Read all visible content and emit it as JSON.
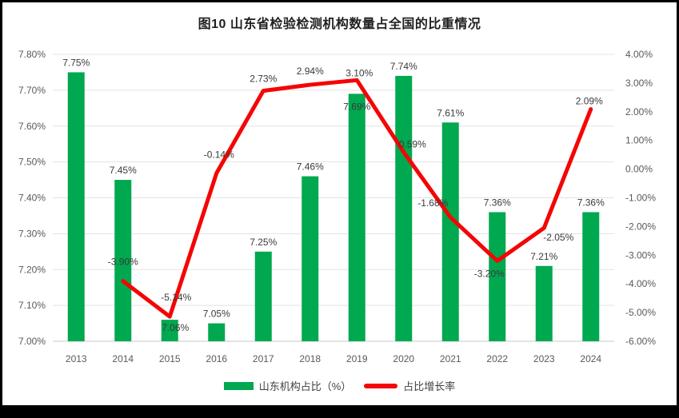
{
  "title": "图10  山东省检验检测机构数量占全国的比重情况",
  "legend": {
    "bar_label": "山东机构占比（%）",
    "line_label": "占比增长率"
  },
  "colors": {
    "bar_green": "#00a84f",
    "line_red": "#f50505",
    "grid_gray": "#e3e3e3",
    "tick_gray": "#595959",
    "frame_black": "#000000"
  },
  "chart_data": {
    "type": "bar+line combo",
    "title": "图10  山东省检验检测机构数量占全国的比重情况",
    "categories": [
      "2013",
      "2014",
      "2015",
      "2016",
      "2017",
      "2018",
      "2019",
      "2020",
      "2021",
      "2022",
      "2023",
      "2024"
    ],
    "series": [
      {
        "name": "山东机构占比（%）",
        "type": "bar",
        "axis": "left",
        "color": "#00a84f",
        "values": [
          7.75,
          7.45,
          7.06,
          7.05,
          7.25,
          7.46,
          7.69,
          7.74,
          7.61,
          7.36,
          7.21,
          7.36
        ],
        "labels": [
          "7.75%",
          "7.45%",
          "7.06%",
          "7.05%",
          "7.25%",
          "7.46%",
          "7.69%",
          "7.74%",
          "7.61%",
          "7.36%",
          "7.21%",
          "7.36%"
        ],
        "label_dx": [
          0,
          0,
          7,
          0,
          0,
          0,
          0,
          0,
          0,
          0,
          0,
          0
        ],
        "label_dy": [
          -8,
          -8,
          14,
          -8,
          -8,
          -8,
          20,
          -8,
          -8,
          -8,
          -8,
          -8
        ]
      },
      {
        "name": "占比增长率",
        "type": "line",
        "axis": "right",
        "color": "#f50505",
        "values": [
          null,
          -3.9,
          -5.14,
          -0.14,
          2.73,
          2.94,
          3.1,
          0.59,
          -1.68,
          -3.2,
          -2.05,
          2.09
        ],
        "labels": [
          null,
          "-3.90%",
          "-5.14%",
          "-0.14%",
          "2.73%",
          "2.94%",
          "3.10%",
          "0.59%",
          "-1.68%",
          "-3.20%",
          "-2.05%",
          "2.09%"
        ],
        "label_dx": [
          0,
          0,
          8,
          3,
          0,
          0,
          3,
          11,
          -22,
          -10,
          18,
          -2
        ],
        "label_dy": [
          0,
          -20,
          -20,
          -19,
          -11,
          -13,
          -5,
          -6,
          -14,
          20,
          16,
          -6
        ]
      }
    ],
    "left_axis": {
      "min": 7.0,
      "max": 7.8,
      "ticks": [
        "7.80%",
        "7.70%",
        "7.60%",
        "7.50%",
        "7.40%",
        "7.30%",
        "7.20%",
        "7.10%",
        "7.00%"
      ]
    },
    "right_axis": {
      "min": -6,
      "max": 4,
      "ticks": [
        "4.00%",
        "3.00%",
        "2.00%",
        "1.00%",
        "0.00%",
        "-1.00%",
        "-2.00%",
        "-3.00%",
        "-4.00%",
        "-5.00%",
        "-6.00%"
      ]
    },
    "grid": "horizontal, primary axis",
    "legend_position": "bottom"
  }
}
